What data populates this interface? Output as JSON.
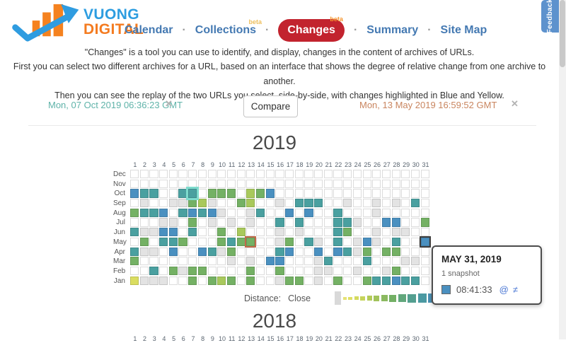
{
  "brand": {
    "line1": "VUONG",
    "line2": "DIGITAL"
  },
  "nav": {
    "separator": "·",
    "items": [
      {
        "label": "Calendar",
        "active": false
      },
      {
        "label": "Collections",
        "beta": "beta",
        "active": false
      },
      {
        "label": "Changes",
        "beta": "beta",
        "active": true
      },
      {
        "label": "Summary",
        "active": false
      },
      {
        "label": "Site Map",
        "active": false
      }
    ]
  },
  "feedback_tab": {
    "label": "Feedback"
  },
  "intro": {
    "lines": [
      "\"Changes\" is a tool you can use to identify, and display, changes in the content of archives of URLs.",
      "First you can select two different archives for a URL, based on an interface that shows the degree of relative change from one archive to another.",
      "Then you can see the replay of the two URLs you select, side-by-side, with changes highlighted in Blue and Yellow."
    ]
  },
  "compare_bar": {
    "left_date": "Mon, 07 Oct 2019 06:36:23 GMT",
    "right_date": "Mon, 13 May 2019 16:59:52 GMT",
    "compare_label": "Compare",
    "remove_label": "✕"
  },
  "palette": {
    "b": "#4a90c0",
    "t": "#4aa0a0",
    "g": "#74b164",
    "yg": "#a9c95c",
    "y": "#dadd60",
    "G": "#e3e3e3"
  },
  "heatmap_2019": {
    "year": "2019",
    "day_headers": [
      "1",
      "2",
      "3",
      "4",
      "5",
      "6",
      "7",
      "8",
      "9",
      "10",
      "11",
      "12",
      "13",
      "14",
      "15",
      "16",
      "17",
      "18",
      "19",
      "20",
      "21",
      "22",
      "23",
      "24",
      "25",
      "26",
      "27",
      "28",
      "29",
      "30",
      "31"
    ],
    "rows": [
      {
        "month": "Dec",
        "cells": [
          "",
          "",
          "",
          "",
          "",
          "",
          "",
          "",
          "",
          "",
          "",
          "",
          "",
          "",
          "",
          "",
          "",
          "",
          "",
          "",
          "",
          "",
          "",
          "",
          "",
          "",
          "",
          "",
          "",
          "",
          ""
        ]
      },
      {
        "month": "Nov",
        "cells": [
          "",
          "",
          "",
          "",
          "",
          "",
          "",
          "",
          "",
          "",
          "",
          "",
          "",
          "",
          "",
          "",
          "",
          "",
          "",
          "",
          "",
          "",
          "",
          "",
          "",
          "",
          "",
          "",
          "",
          "",
          ""
        ]
      },
      {
        "month": "Oct",
        "cells": [
          "b",
          "t",
          "t",
          "",
          "",
          "t",
          "t",
          "",
          "g",
          "g",
          "g",
          "",
          "yg",
          "g",
          "b",
          "",
          "",
          "",
          "",
          "",
          "",
          "",
          "",
          "",
          "",
          "",
          "",
          "",
          "",
          "",
          ""
        ]
      },
      {
        "month": "Sep",
        "cells": [
          "",
          "G",
          "",
          "",
          "G",
          "G",
          "g",
          "yg",
          "G",
          "",
          "",
          "g",
          "yg",
          "",
          "",
          "G",
          "",
          "t",
          "t",
          "t",
          "",
          "",
          "G",
          "",
          "",
          "G",
          "",
          "G",
          "",
          "t",
          ""
        ]
      },
      {
        "month": "Aug",
        "cells": [
          "g",
          "t",
          "t",
          "b",
          "",
          "t",
          "b",
          "t",
          "b",
          "G",
          "",
          "",
          "G",
          "t",
          "",
          "",
          "b",
          "",
          "b",
          "",
          "",
          "t",
          "",
          "",
          "",
          "G",
          "",
          "",
          "",
          "",
          ""
        ]
      },
      {
        "month": "Jul",
        "cells": [
          "",
          "",
          "",
          "G",
          "G",
          "",
          "g",
          "",
          "G",
          "",
          "G",
          "",
          "G",
          "",
          "",
          "t",
          "",
          "t",
          "",
          "",
          "",
          "t",
          "t",
          "G",
          "",
          "",
          "b",
          "b",
          "",
          "",
          "g"
        ]
      },
      {
        "month": "Jun",
        "cells": [
          "t",
          "G",
          "G",
          "b",
          "b",
          "",
          "t",
          "",
          "",
          "g",
          "",
          "yg",
          "",
          "",
          "",
          "G",
          "",
          "G",
          "",
          "",
          "",
          "t",
          "g",
          "",
          "",
          "G",
          "",
          "G",
          "G",
          "",
          ""
        ]
      },
      {
        "month": "May",
        "cells": [
          "",
          "g",
          "",
          "t",
          "t",
          "g",
          "",
          "",
          "",
          "g",
          "t",
          "g",
          "g",
          "",
          "",
          "G",
          "g",
          "",
          "t",
          "G",
          "",
          "t",
          "",
          "G",
          "b",
          "G",
          "",
          "t",
          "",
          "",
          "b"
        ]
      },
      {
        "month": "Apr",
        "cells": [
          "t",
          "G",
          "G",
          "",
          "b",
          "",
          "",
          "b",
          "t",
          "G",
          "g",
          "",
          "",
          "",
          "",
          "t",
          "b",
          "",
          "",
          "b",
          "",
          "b",
          "t",
          "G",
          "g",
          "",
          "g",
          "g",
          "",
          "",
          ""
        ]
      },
      {
        "month": "Mar",
        "cells": [
          "g",
          "",
          "",
          "",
          "",
          "",
          "",
          "",
          "",
          "",
          "G",
          "",
          "G",
          "",
          "b",
          "b",
          "",
          "",
          "",
          "G",
          "t",
          "",
          "",
          "",
          "t",
          "",
          "",
          "",
          "G",
          "G",
          ""
        ]
      },
      {
        "month": "Feb",
        "cells": [
          "",
          "",
          "t",
          "",
          "g",
          "G",
          "g",
          "g",
          "",
          "",
          "",
          "",
          "g",
          "",
          "",
          "g",
          "",
          "",
          "",
          "G",
          "G",
          "",
          "",
          "G",
          "",
          "",
          "G",
          "g",
          "",
          "",
          ""
        ]
      },
      {
        "month": "Jan",
        "cells": [
          "y",
          "G",
          "G",
          "G",
          "",
          "",
          "g",
          "",
          "g",
          "yg",
          "g",
          "",
          "g",
          "",
          "",
          "G",
          "g",
          "g",
          "",
          "G",
          "",
          "g",
          "",
          "",
          "g",
          "t",
          "t",
          "b",
          "t",
          "t",
          ""
        ]
      }
    ],
    "selections": [
      {
        "month": "Oct",
        "day": 7,
        "ring_color": "#7edbcd",
        "ring_width": 3
      },
      {
        "month": "May",
        "day": 13,
        "ring_color": "#c06a4a",
        "ring_width": 2
      },
      {
        "month": "May",
        "day": 31,
        "ring_color": "#3f3f3f",
        "ring_width": 2
      }
    ]
  },
  "legend": {
    "label": "Distance:",
    "near_label": "Close",
    "items": [
      {
        "color": "#d9d9d9",
        "w": 9,
        "h": 19
      },
      {
        "color": "#e6e276",
        "w": 5,
        "h": 4
      },
      {
        "color": "#dfdf66",
        "w": 6,
        "h": 4
      },
      {
        "color": "#d4da5e",
        "w": 6,
        "h": 5
      },
      {
        "color": "#c6d45b",
        "w": 7,
        "h": 6
      },
      {
        "color": "#b4cb58",
        "w": 7,
        "h": 7
      },
      {
        "color": "#a2c35b",
        "w": 8,
        "h": 8
      },
      {
        "color": "#8bb960",
        "w": 9,
        "h": 9
      },
      {
        "color": "#73b065",
        "w": 10,
        "h": 10
      },
      {
        "color": "#61a77c",
        "w": 11,
        "h": 11
      },
      {
        "color": "#549f90",
        "w": 12,
        "h": 12
      },
      {
        "color": "#4b99a2",
        "w": 12,
        "h": 13
      },
      {
        "color": "#4c92b6",
        "w": 13,
        "h": 13
      }
    ]
  },
  "tooltip": {
    "title": "MAY 31, 2019",
    "count": "1 snapshot",
    "time": "08:41:33",
    "swatch_color": "#4a90c0",
    "at_icon": "@",
    "diff_icon": "≠"
  },
  "heatmap_2018": {
    "year": "2018",
    "day_headers": [
      "1",
      "2",
      "3",
      "4",
      "5",
      "6",
      "7",
      "8",
      "9",
      "10",
      "11",
      "12",
      "13",
      "14",
      "15",
      "16",
      "17",
      "18",
      "19",
      "20",
      "21",
      "22",
      "23",
      "24",
      "25",
      "26",
      "27",
      "28",
      "29",
      "30",
      "31"
    ]
  }
}
